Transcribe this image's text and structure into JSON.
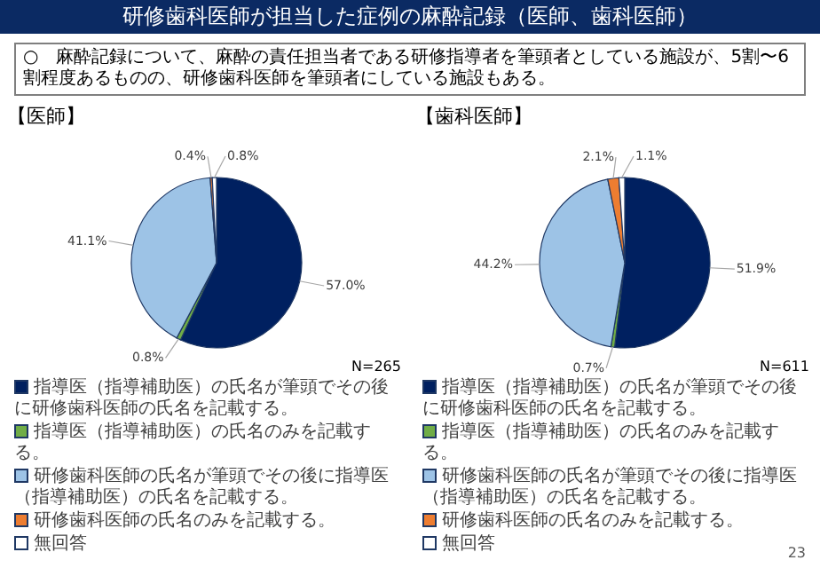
{
  "chart_data": [
    {
      "type": "pie",
      "title": "【医師】",
      "annotations": [
        "研修歯科医師が担当した症例の麻酔記録（医師、歯科医師）",
        "○　麻酔記録について、麻酔の責任担当者である研修指導者を筆頭者としている施設が、5割〜6割程度あるものの、研修歯科医師を筆頭者にしている施設もある。",
        "N=265"
      ],
      "categories": [
        "指導医（指導補助医）の氏名が筆頭でその後に研修歯科医師の氏名を記載する。",
        "指導医（指導補助医）の氏名のみを記載する。",
        "研修歯科医師の氏名が筆頭でその後に指導医（指導補助医）の氏名を記載する。",
        "研修歯科医師の氏名のみを記載する。",
        "無回答"
      ],
      "values": [
        57.0,
        0.8,
        41.1,
        0.4,
        0.8
      ],
      "value_labels": [
        "57.0%",
        "0.8%",
        "41.1%",
        "0.4%",
        "0.8%"
      ],
      "colors": [
        "#002060",
        "#70ad47",
        "#9dc3e6",
        "#ed7d31",
        "#ffffff"
      ],
      "legend": "bottom"
    },
    {
      "type": "pie",
      "title": "【歯科医師】",
      "annotations": [
        "N=611",
        "23"
      ],
      "categories": [
        "指導医（指導補助医）の氏名が筆頭でその後に研修歯科医師の氏名を記載する。",
        "指導医（指導補助医）の氏名のみを記載する。",
        "研修歯科医師の氏名が筆頭でその後に指導医（指導補助医）の氏名を記載する。",
        "研修歯科医師の氏名のみを記載する。",
        "無回答"
      ],
      "values": [
        51.9,
        0.7,
        44.2,
        2.1,
        1.1
      ],
      "value_labels": [
        "51.9%",
        "0.7%",
        "44.2%",
        "2.1%",
        "1.1%"
      ],
      "colors": [
        "#002060",
        "#70ad47",
        "#9dc3e6",
        "#ed7d31",
        "#ffffff"
      ],
      "legend": "bottom"
    }
  ]
}
